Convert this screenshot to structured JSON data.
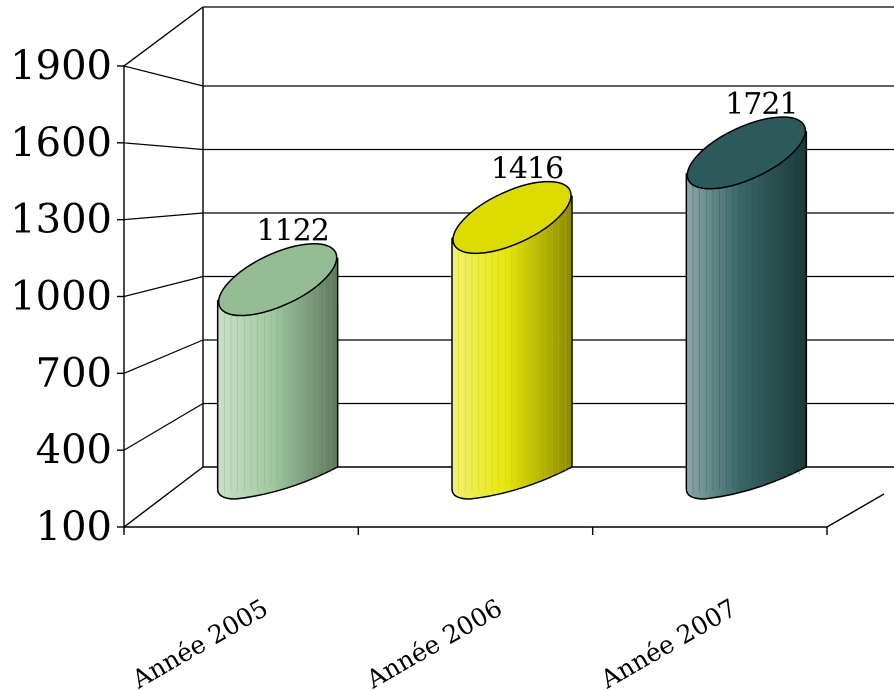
{
  "chart_data": {
    "type": "bar",
    "categories": [
      "Année 2005",
      "Année 2006",
      "Année 2007"
    ],
    "values": [
      1122,
      1416,
      1721
    ],
    "data_labels": [
      "1122",
      "1416",
      "1721"
    ],
    "ylim": [
      100,
      1900
    ],
    "yticks": [
      100,
      400,
      700,
      1000,
      1300,
      1600,
      1900
    ],
    "ytick_labels": [
      "100",
      "400",
      "700",
      "1000",
      "1300",
      "1600",
      "1900"
    ],
    "grid": true,
    "bar_shape": "3d-cylinder",
    "colors": [
      "#9cc79c",
      "#e6e600",
      "#2e5f5f"
    ],
    "title": "",
    "xlabel": "",
    "ylabel": ""
  }
}
